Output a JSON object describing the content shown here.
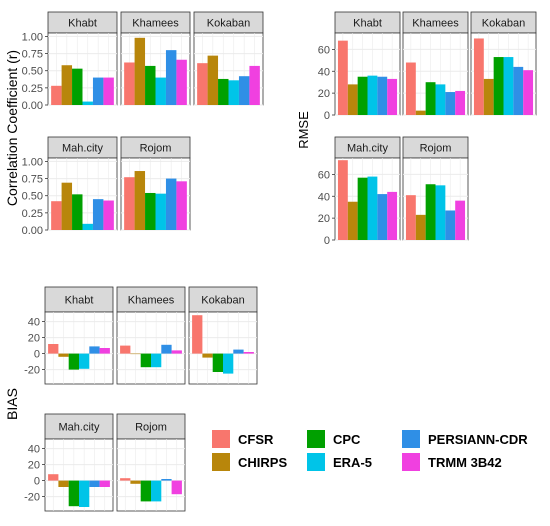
{
  "colors": {
    "CFSR": "#f8766d",
    "CHIRPS": "#b8860b",
    "CPC": "#00a000",
    "ERA-5": "#00c4e8",
    "PERSIANN-CDR": "#2f8fe6",
    "TRMM 3B42": "#f040e0",
    "strip": "#d9d9d9",
    "grid": "#ebebeb"
  },
  "legend": {
    "items": [
      "CFSR",
      "CHIRPS",
      "CPC",
      "ERA-5",
      "PERSIANN-CDR",
      "TRMM 3B42"
    ]
  },
  "chart_data": [
    {
      "type": "bar",
      "ylabel": "Correlation Coefficient (r)",
      "ylim": [
        0,
        1.05
      ],
      "yticks": [
        0.0,
        0.25,
        0.5,
        0.75,
        1.0
      ],
      "yticklabels": [
        "0.00",
        "0.25",
        "0.50",
        "0.75",
        "1.00"
      ],
      "series_names": [
        "CFSR",
        "CHIRPS",
        "CPC",
        "ERA-5",
        "PERSIANN-CDR",
        "TRMM 3B42"
      ],
      "panels": [
        {
          "name": "Khabt",
          "values": [
            0.28,
            0.58,
            0.53,
            0.05,
            0.4,
            0.4
          ]
        },
        {
          "name": "Khamees",
          "values": [
            0.62,
            0.98,
            0.57,
            0.4,
            0.8,
            0.66
          ]
        },
        {
          "name": "Kokaban",
          "values": [
            0.61,
            0.72,
            0.38,
            0.36,
            0.42,
            0.57
          ]
        },
        {
          "name": "Mah.city",
          "values": [
            0.42,
            0.69,
            0.52,
            0.09,
            0.45,
            0.43
          ]
        },
        {
          "name": "Rojom",
          "values": [
            0.77,
            0.86,
            0.54,
            0.53,
            0.75,
            0.71
          ]
        }
      ],
      "grid": true
    },
    {
      "type": "bar",
      "ylabel": "RMSE",
      "ylim": [
        0,
        75
      ],
      "yticks": [
        0,
        20,
        40,
        60
      ],
      "yticklabels": [
        "0",
        "20",
        "40",
        "60"
      ],
      "series_names": [
        "CFSR",
        "CHIRPS",
        "CPC",
        "ERA-5",
        "PERSIANN-CDR",
        "TRMM 3B42"
      ],
      "panels": [
        {
          "name": "Khabt",
          "values": [
            68,
            28,
            35,
            36,
            35,
            33
          ]
        },
        {
          "name": "Khamees",
          "values": [
            48,
            4,
            30,
            28,
            21,
            22
          ]
        },
        {
          "name": "Kokaban",
          "values": [
            70,
            33,
            53,
            53,
            44,
            41
          ]
        },
        {
          "name": "Mah.city",
          "values": [
            73,
            35,
            57,
            58,
            42,
            44
          ]
        },
        {
          "name": "Rojom",
          "values": [
            41,
            23,
            51,
            50,
            27,
            36
          ]
        }
      ],
      "grid": true
    },
    {
      "type": "bar",
      "ylabel": "BIAS",
      "ylim": [
        -38,
        52
      ],
      "yticks": [
        -20,
        0,
        20,
        40
      ],
      "yticklabels": [
        "-20",
        "0",
        "20",
        "40"
      ],
      "series_names": [
        "CFSR",
        "CHIRPS",
        "CPC",
        "ERA-5",
        "PERSIANN-CDR",
        "TRMM 3B42"
      ],
      "panels": [
        {
          "name": "Khabt",
          "values": [
            12,
            -4,
            -20,
            -19,
            9,
            7
          ]
        },
        {
          "name": "Khamees",
          "values": [
            10,
            0,
            -17,
            -17,
            11,
            4
          ]
        },
        {
          "name": "Kokaban",
          "values": [
            48,
            -5,
            -23,
            -25,
            5,
            2
          ]
        },
        {
          "name": "Mah.city",
          "values": [
            8,
            -8,
            -32,
            -33,
            -8,
            -8
          ]
        },
        {
          "name": "Rojom",
          "values": [
            3,
            -4,
            -26,
            -26,
            2,
            -17
          ]
        }
      ],
      "grid": true
    }
  ]
}
